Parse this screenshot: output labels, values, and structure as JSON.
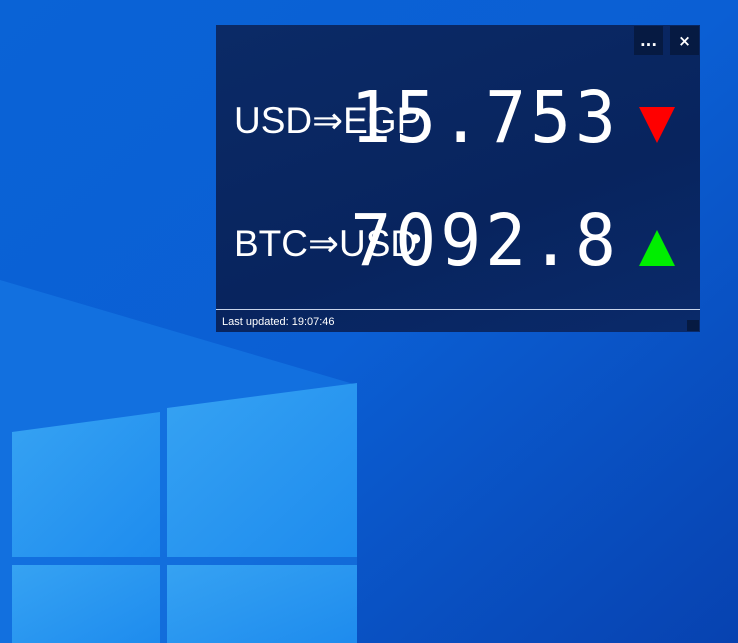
{
  "widget": {
    "buttons": [
      "...",
      "×"
    ],
    "rates": [
      {
        "pair": "USD⇒EGP",
        "value": "15.753",
        "trend": "down"
      },
      {
        "pair": "BTC⇒USD",
        "value": "7092.8",
        "trend": "up"
      }
    ],
    "status": "Last updated: 19:07:46"
  }
}
